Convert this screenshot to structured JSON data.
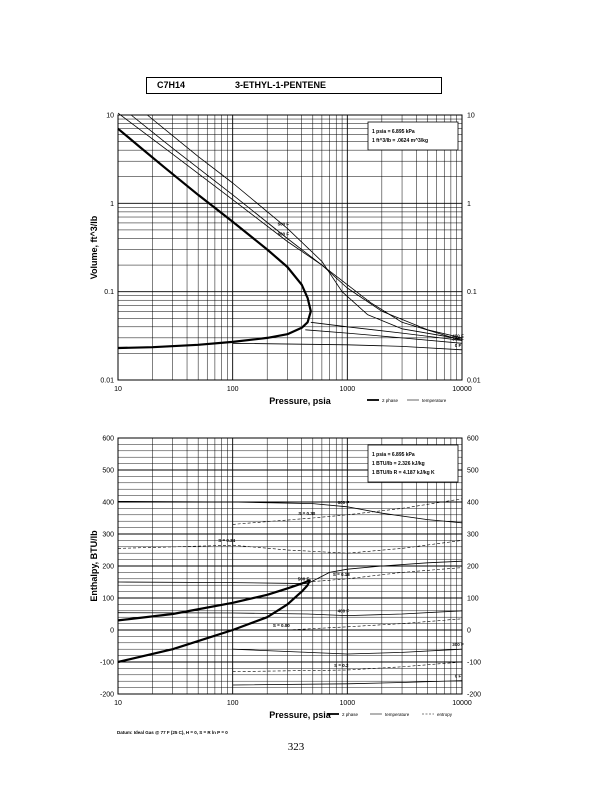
{
  "header": {
    "formula": "C7H14",
    "name": "3-ETHYL-1-PENTENE"
  },
  "page_number": "323",
  "chart_data": [
    {
      "type": "line",
      "xlabel": "Pressure,  psia",
      "ylabel": "Volume, ft^3/lb",
      "xscale": "log",
      "yscale": "log",
      "xlim": [
        10,
        10000
      ],
      "ylim": [
        0.01,
        10
      ],
      "x_ticks": [
        "10",
        "100",
        "1000",
        "10000"
      ],
      "y_ticks": [
        "10",
        "1",
        "0.1",
        "0.01"
      ],
      "grid": true,
      "conversion_box": [
        "1 psia  =  6.895 kPa",
        "1 ft^3/lb  =  .0624 m^3/kg"
      ],
      "legend": [
        "2 phase",
        "temperature"
      ],
      "two_phase_envelope": {
        "x": [
          10,
          15,
          25,
          50,
          100,
          200,
          300,
          400,
          450,
          480,
          450,
          400,
          300,
          200,
          100,
          50,
          20,
          10
        ],
        "y": [
          7.0,
          4.5,
          2.6,
          1.25,
          0.62,
          0.3,
          0.19,
          0.12,
          0.085,
          0.06,
          0.045,
          0.039,
          0.033,
          0.03,
          0.027,
          0.025,
          0.0235,
          0.023
        ]
      },
      "isotherms": [
        {
          "label": "",
          "x": [
            10,
            30,
            100,
            300,
            600,
            1000,
            1600,
            3000,
            10000
          ],
          "y": [
            10.5,
            3.6,
            1.1,
            0.37,
            0.2,
            0.12,
            0.075,
            0.045,
            0.028
          ]
        },
        {
          "label": "600 F",
          "x": [
            13,
            30,
            100,
            300,
            600,
            1000,
            2000,
            5000,
            10000
          ],
          "y": [
            10,
            4.2,
            1.25,
            0.4,
            0.2,
            0.11,
            0.06,
            0.037,
            0.03
          ]
        },
        {
          "label": "500 F",
          "x": [
            18,
            50,
            100,
            300,
            600,
            900,
            1500,
            3000,
            10000
          ],
          "y": [
            10,
            3.4,
            1.7,
            0.52,
            0.22,
            0.1,
            0.055,
            0.038,
            0.029
          ]
        },
        {
          "label": "400 F",
          "x": [
            480,
            1000,
            3000,
            10000
          ],
          "y": [
            0.045,
            0.04,
            0.034,
            0.028
          ]
        },
        {
          "label": "300 F",
          "x": [
            430,
            1000,
            3000,
            10000
          ],
          "y": [
            0.037,
            0.034,
            0.03,
            0.026
          ]
        },
        {
          "label": "0 F",
          "x": [
            100,
            1000,
            3000,
            10000
          ],
          "y": [
            0.026,
            0.025,
            0.024,
            0.022
          ]
        }
      ]
    },
    {
      "type": "line",
      "xlabel": "Pressure,  psia",
      "ylabel": "Enthalpy, BTU/lb",
      "xscale": "log",
      "xlim": [
        10,
        10000
      ],
      "ylim": [
        -200,
        600
      ],
      "x_ticks": [
        "10",
        "100",
        "1000",
        "10000"
      ],
      "y_ticks": [
        "600",
        "500",
        "400",
        "300",
        "200",
        "100",
        "0",
        "-100",
        "-200"
      ],
      "grid": true,
      "conversion_box": [
        "1 psia  =  6.895 kPa",
        "1 BTU/lb  =  2.326 kJ/kg",
        "1 BTU/lb R  =  4.187 kJ/kg K"
      ],
      "footnote": "Datum: Ideal Gas @ 77 F (25 C),  H = 0,  S = R ln P = 0",
      "legend": [
        "2 phase",
        "temperature",
        "entropy"
      ],
      "two_phase_envelope": {
        "x": [
          10,
          30,
          100,
          200,
          300,
          400,
          470,
          450,
          400,
          300,
          200,
          100,
          30,
          10
        ],
        "y": [
          30,
          50,
          85,
          110,
          130,
          145,
          155,
          140,
          120,
          80,
          40,
          0,
          -60,
          -100
        ]
      },
      "isotherms": [
        {
          "label": "600 F",
          "x": [
            10,
            100,
            500,
            1000,
            2000,
            5000,
            10000
          ],
          "y": [
            402,
            400,
            395,
            385,
            365,
            345,
            335
          ]
        },
        {
          "label": "500 F",
          "x": [
            10,
            100,
            300,
            450,
            700,
            1000,
            2000,
            5000,
            10000
          ],
          "y": [
            150,
            148,
            146,
            145,
            180,
            190,
            200,
            210,
            215
          ]
        },
        {
          "label": "400 F",
          "x": [
            10,
            100,
            450,
            1000,
            3000,
            10000
          ],
          "y": [
            54,
            53,
            50,
            45,
            50,
            60
          ]
        },
        {
          "label": "300 F",
          "x": [
            100,
            1000,
            3000,
            10000
          ],
          "y": [
            -60,
            -75,
            -70,
            -60
          ]
        },
        {
          "label": "0 F",
          "x": [
            100,
            1000,
            3000,
            10000
          ],
          "y": [
            -172,
            -168,
            -164,
            -158
          ]
        }
      ],
      "entropy_lines": [
        {
          "label": "S = 0.30",
          "x": [
            100,
            500,
            1000,
            3000,
            10000
          ],
          "y": [
            330,
            350,
            360,
            380,
            410
          ]
        },
        {
          "label": "S = 0.24",
          "x": [
            10,
            100,
            300,
            1000,
            3000,
            10000
          ],
          "y": [
            255,
            265,
            250,
            240,
            255,
            280
          ]
        },
        {
          "label": "S = 0.18",
          "x": [
            450,
            1000,
            3000,
            10000
          ],
          "y": [
            150,
            160,
            180,
            195
          ]
        },
        {
          "label": "S = 0.00",
          "x": [
            100,
            300,
            1000,
            3000,
            10000
          ],
          "y": [
            0,
            0,
            10,
            20,
            35
          ]
        },
        {
          "label": "S = 0.2",
          "x": [
            100,
            1000,
            3000,
            10000
          ],
          "y": [
            -130,
            -125,
            -115,
            -100
          ]
        }
      ]
    }
  ]
}
